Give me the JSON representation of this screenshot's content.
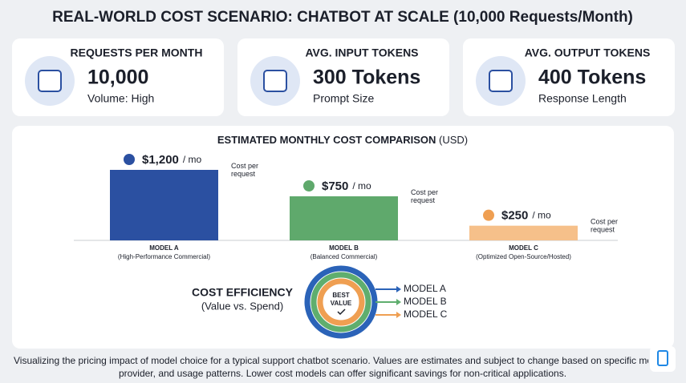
{
  "title": "REAL-WORLD COST SCENARIO: CHATBOT AT SCALE (10,000 Requests/Month)",
  "cards": [
    {
      "label": "REQUESTS PER MONTH",
      "value": "10,000",
      "note": "Volume: High"
    },
    {
      "label": "AVG. INPUT TOKENS",
      "value": "300 Tokens",
      "note": "Prompt Size"
    },
    {
      "label": "AVG. OUTPUT TOKENS",
      "value": "400 Tokens",
      "note": "Response Length"
    }
  ],
  "chart_data": {
    "type": "bar",
    "title": "ESTIMATED MONTHLY COST COMPARISON",
    "title_unit": "(USD)",
    "categories": [
      "MODEL A",
      "MODEL B",
      "MODEL C"
    ],
    "category_notes": [
      "(High-Performance Commercial)",
      "(Balanced Commercial)",
      "(Optimized Open-Source/Hosted)"
    ],
    "values": [
      1200,
      750,
      250
    ],
    "value_labels": [
      "$1,200",
      "$750",
      "$250"
    ],
    "unit_label": "/ mo",
    "bar_note": "Cost per request",
    "colors": [
      "#2b50a1",
      "#5fa96c",
      "#f6c08a"
    ]
  },
  "efficiency": {
    "title": "COST EFFICIENCY",
    "subtitle": "(Value vs. Spend)",
    "center": "BEST VALUE",
    "items": [
      {
        "name": "MODEL A",
        "color": "#2b63b8"
      },
      {
        "name": "MODEL B",
        "color": "#5fae6e"
      },
      {
        "name": "MODEL C",
        "color": "#ef9f52"
      }
    ]
  },
  "footer": [
    "Visualizing the pricing impact of model choice for a typical support chatbot scenario. Values are estimates and subject to change based on specific model,",
    "provider, and usage patterns. Lower cost models can offer significant savings for non-critical applications."
  ]
}
